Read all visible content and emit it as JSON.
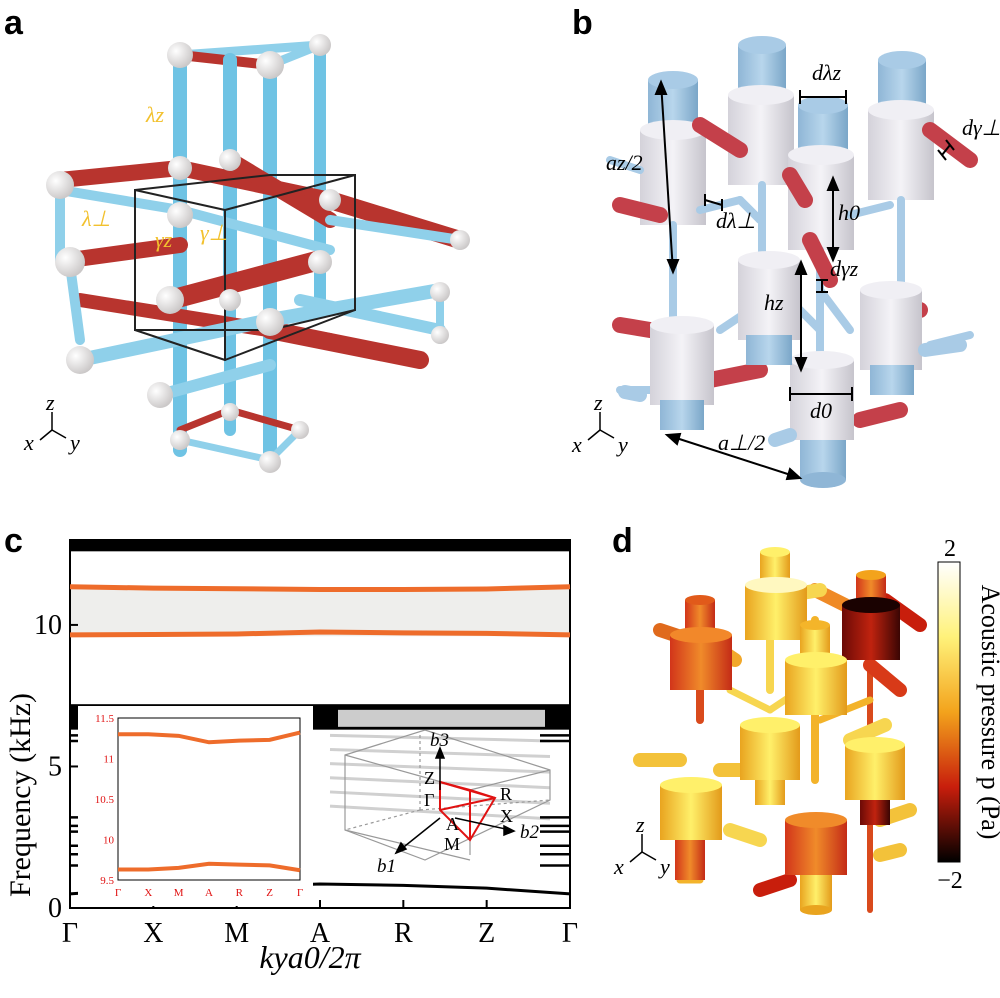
{
  "panels": {
    "a": {
      "label": "a",
      "bond_labels": [
        "λz",
        "λ⊥",
        "γz",
        "γ⊥"
      ],
      "axes": {
        "z": "z",
        "x": "x",
        "y": "y"
      }
    },
    "b": {
      "label": "b",
      "dims": {
        "d_lz": "dλz",
        "d_gperp": "dγ⊥",
        "az": "az/2",
        "d_lperp": "dλ⊥",
        "h0": "h0",
        "d_gz": "dγz",
        "hz": "hz",
        "d0": "d0",
        "aperp": "a⊥/2"
      },
      "axes": {
        "z": "z",
        "x": "x",
        "y": "y"
      }
    },
    "c": {
      "label": "c",
      "ylabel": "Frequency (kHz)",
      "xlabel": "kya0/2π",
      "inset_bz": [
        "b3",
        "b2",
        "b1",
        "Z",
        "R",
        "Γ",
        "X",
        "A",
        "M"
      ],
      "colors": {
        "topological": "#ee6c2b",
        "bulk": "#000000",
        "gap": "#eeeeec",
        "slab": "#cccccc"
      }
    },
    "d": {
      "label": "d",
      "colorbar_label": "Acoustic pressure p (Pa)",
      "cb_max": "2",
      "cb_min": "−2",
      "axes": {
        "z": "z",
        "x": "x",
        "y": "y"
      }
    }
  },
  "chart_data": {
    "type": "line",
    "xlabel": "kya0/2π",
    "ylabel": "Frequency (kHz)",
    "ylim": [
      0,
      13
    ],
    "categories": [
      "Γ",
      "X",
      "M",
      "A",
      "R",
      "Z",
      "Γ"
    ],
    "yticks": [
      0,
      5,
      10
    ],
    "gap": [
      9.6,
      11.3
    ],
    "series": [
      {
        "values": [
          11.35,
          11.3,
          11.28,
          11.25,
          11.25,
          11.27,
          11.35
        ]
      },
      {
        "values": [
          9.65,
          9.66,
          9.68,
          9.75,
          9.72,
          9.7,
          9.65
        ]
      },
      {
        "values": [
          0.5,
          0.7,
          0.75,
          0.85,
          0.8,
          0.7,
          0.5
        ]
      }
    ],
    "inset": {
      "categories": [
        "Γ",
        "X",
        "M",
        "A",
        "R",
        "Z",
        "Γ"
      ],
      "ylim": [
        9.5,
        11.5
      ],
      "yticks": [
        "9.5",
        "10",
        "10.5",
        "11",
        "11.5"
      ],
      "series": [
        {
          "values": [
            11.3,
            11.3,
            11.28,
            11.2,
            11.22,
            11.23,
            11.32
          ]
        },
        {
          "values": [
            9.63,
            9.63,
            9.65,
            9.7,
            9.69,
            9.68,
            9.62
          ]
        }
      ]
    }
  }
}
